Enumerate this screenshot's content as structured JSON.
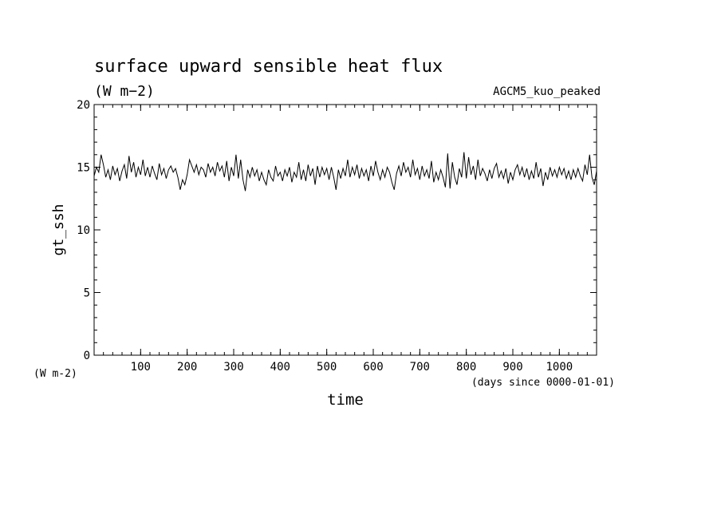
{
  "chart_data": {
    "type": "line",
    "title": "surface upward sensible heat flux",
    "subtitle": "(W m−2)",
    "annotation": "AGCM5_kuo_peaked",
    "xlabel": "time",
    "xunit": "(days since 0000-01-01)",
    "ylabel": "gt_ssh",
    "yunit": "(W m-2)",
    "xlim": [
      0,
      1080
    ],
    "ylim": [
      0,
      20
    ],
    "xticks": [
      100,
      200,
      300,
      400,
      500,
      600,
      700,
      800,
      900,
      1000
    ],
    "yticks": [
      0,
      5,
      10,
      15,
      20
    ],
    "grid": false,
    "series": [
      {
        "values": [
          [
            0,
            14.3
          ],
          [
            5,
            15.0
          ],
          [
            10,
            14.6
          ],
          [
            15,
            16.0
          ],
          [
            20,
            15.2
          ],
          [
            25,
            14.2
          ],
          [
            30,
            14.8
          ],
          [
            35,
            14.0
          ],
          [
            40,
            15.1
          ],
          [
            45,
            14.4
          ],
          [
            50,
            14.9
          ],
          [
            55,
            13.9
          ],
          [
            60,
            14.7
          ],
          [
            65,
            15.2
          ],
          [
            70,
            14.1
          ],
          [
            75,
            15.9
          ],
          [
            80,
            14.6
          ],
          [
            85,
            15.4
          ],
          [
            90,
            14.2
          ],
          [
            95,
            15.0
          ],
          [
            100,
            14.4
          ],
          [
            105,
            15.6
          ],
          [
            110,
            14.3
          ],
          [
            115,
            15.0
          ],
          [
            120,
            14.2
          ],
          [
            125,
            15.1
          ],
          [
            130,
            14.5
          ],
          [
            135,
            14.0
          ],
          [
            140,
            15.3
          ],
          [
            145,
            14.4
          ],
          [
            150,
            14.9
          ],
          [
            155,
            14.1
          ],
          [
            160,
            14.8
          ],
          [
            165,
            15.1
          ],
          [
            170,
            14.6
          ],
          [
            175,
            14.9
          ],
          [
            180,
            14.2
          ],
          [
            185,
            13.2
          ],
          [
            190,
            14.0
          ],
          [
            195,
            13.6
          ],
          [
            200,
            14.4
          ],
          [
            205,
            15.6
          ],
          [
            210,
            15.1
          ],
          [
            215,
            14.6
          ],
          [
            220,
            15.2
          ],
          [
            225,
            14.4
          ],
          [
            230,
            15.0
          ],
          [
            235,
            14.8
          ],
          [
            240,
            14.2
          ],
          [
            245,
            15.3
          ],
          [
            250,
            14.6
          ],
          [
            255,
            15.0
          ],
          [
            260,
            14.3
          ],
          [
            265,
            15.4
          ],
          [
            270,
            14.7
          ],
          [
            275,
            15.1
          ],
          [
            280,
            14.2
          ],
          [
            285,
            15.5
          ],
          [
            290,
            13.9
          ],
          [
            295,
            15.0
          ],
          [
            300,
            14.3
          ],
          [
            305,
            16.0
          ],
          [
            310,
            14.1
          ],
          [
            315,
            15.6
          ],
          [
            320,
            14.0
          ],
          [
            325,
            13.1
          ],
          [
            330,
            14.8
          ],
          [
            335,
            14.2
          ],
          [
            340,
            15.0
          ],
          [
            345,
            14.3
          ],
          [
            350,
            14.8
          ],
          [
            355,
            13.9
          ],
          [
            360,
            14.6
          ],
          [
            365,
            14.0
          ],
          [
            370,
            13.6
          ],
          [
            375,
            14.8
          ],
          [
            380,
            14.2
          ],
          [
            385,
            13.9
          ],
          [
            390,
            15.1
          ],
          [
            395,
            14.3
          ],
          [
            400,
            14.6
          ],
          [
            405,
            13.9
          ],
          [
            410,
            14.8
          ],
          [
            415,
            14.3
          ],
          [
            420,
            15.0
          ],
          [
            425,
            13.8
          ],
          [
            430,
            14.6
          ],
          [
            435,
            14.2
          ],
          [
            440,
            15.4
          ],
          [
            445,
            14.0
          ],
          [
            450,
            14.8
          ],
          [
            455,
            13.9
          ],
          [
            460,
            15.2
          ],
          [
            465,
            14.3
          ],
          [
            470,
            14.9
          ],
          [
            475,
            13.6
          ],
          [
            480,
            15.1
          ],
          [
            485,
            14.2
          ],
          [
            490,
            15.0
          ],
          [
            495,
            14.4
          ],
          [
            500,
            14.9
          ],
          [
            505,
            14.0
          ],
          [
            510,
            15.0
          ],
          [
            515,
            14.2
          ],
          [
            520,
            13.2
          ],
          [
            525,
            14.8
          ],
          [
            530,
            14.1
          ],
          [
            535,
            14.9
          ],
          [
            540,
            14.3
          ],
          [
            545,
            15.6
          ],
          [
            550,
            14.2
          ],
          [
            555,
            15.0
          ],
          [
            560,
            14.4
          ],
          [
            565,
            15.2
          ],
          [
            570,
            14.1
          ],
          [
            575,
            14.9
          ],
          [
            580,
            14.3
          ],
          [
            585,
            14.8
          ],
          [
            590,
            13.9
          ],
          [
            595,
            15.1
          ],
          [
            600,
            14.3
          ],
          [
            605,
            15.5
          ],
          [
            610,
            14.6
          ],
          [
            615,
            14.0
          ],
          [
            620,
            14.8
          ],
          [
            625,
            14.2
          ],
          [
            630,
            15.0
          ],
          [
            635,
            14.6
          ],
          [
            640,
            13.8
          ],
          [
            645,
            13.2
          ],
          [
            650,
            14.5
          ],
          [
            655,
            15.1
          ],
          [
            660,
            14.3
          ],
          [
            665,
            15.4
          ],
          [
            670,
            14.6
          ],
          [
            675,
            15.0
          ],
          [
            680,
            14.2
          ],
          [
            685,
            15.6
          ],
          [
            690,
            14.4
          ],
          [
            695,
            14.9
          ],
          [
            700,
            14.0
          ],
          [
            705,
            15.1
          ],
          [
            710,
            14.3
          ],
          [
            715,
            14.8
          ],
          [
            720,
            14.1
          ],
          [
            725,
            15.5
          ],
          [
            730,
            13.8
          ],
          [
            735,
            14.6
          ],
          [
            740,
            14.0
          ],
          [
            745,
            14.8
          ],
          [
            750,
            14.2
          ],
          [
            755,
            13.4
          ],
          [
            760,
            16.1
          ],
          [
            765,
            13.3
          ],
          [
            770,
            15.4
          ],
          [
            775,
            14.2
          ],
          [
            780,
            13.6
          ],
          [
            785,
            14.9
          ],
          [
            790,
            14.2
          ],
          [
            795,
            16.2
          ],
          [
            800,
            14.1
          ],
          [
            805,
            15.8
          ],
          [
            810,
            14.4
          ],
          [
            815,
            15.1
          ],
          [
            820,
            14.0
          ],
          [
            825,
            15.6
          ],
          [
            830,
            14.3
          ],
          [
            835,
            14.9
          ],
          [
            840,
            14.5
          ],
          [
            845,
            13.9
          ],
          [
            850,
            14.8
          ],
          [
            855,
            14.1
          ],
          [
            860,
            14.9
          ],
          [
            865,
            15.3
          ],
          [
            870,
            14.2
          ],
          [
            875,
            14.7
          ],
          [
            880,
            14.1
          ],
          [
            885,
            14.9
          ],
          [
            890,
            13.7
          ],
          [
            895,
            14.6
          ],
          [
            900,
            14.0
          ],
          [
            905,
            14.8
          ],
          [
            910,
            15.2
          ],
          [
            915,
            14.4
          ],
          [
            920,
            15.0
          ],
          [
            925,
            14.2
          ],
          [
            930,
            14.9
          ],
          [
            935,
            14.0
          ],
          [
            940,
            14.7
          ],
          [
            945,
            14.1
          ],
          [
            950,
            15.4
          ],
          [
            955,
            14.2
          ],
          [
            960,
            14.9
          ],
          [
            965,
            13.5
          ],
          [
            970,
            14.6
          ],
          [
            975,
            14.0
          ],
          [
            980,
            15.0
          ],
          [
            985,
            14.3
          ],
          [
            990,
            14.8
          ],
          [
            995,
            14.2
          ],
          [
            1000,
            15.0
          ],
          [
            1005,
            14.4
          ],
          [
            1010,
            14.9
          ],
          [
            1015,
            14.1
          ],
          [
            1020,
            14.7
          ],
          [
            1025,
            14.0
          ],
          [
            1030,
            14.8
          ],
          [
            1035,
            14.2
          ],
          [
            1040,
            14.9
          ],
          [
            1045,
            14.3
          ],
          [
            1050,
            13.9
          ],
          [
            1055,
            15.2
          ],
          [
            1060,
            14.4
          ],
          [
            1065,
            16.0
          ],
          [
            1070,
            14.2
          ],
          [
            1075,
            13.6
          ],
          [
            1080,
            14.7
          ]
        ]
      }
    ]
  }
}
